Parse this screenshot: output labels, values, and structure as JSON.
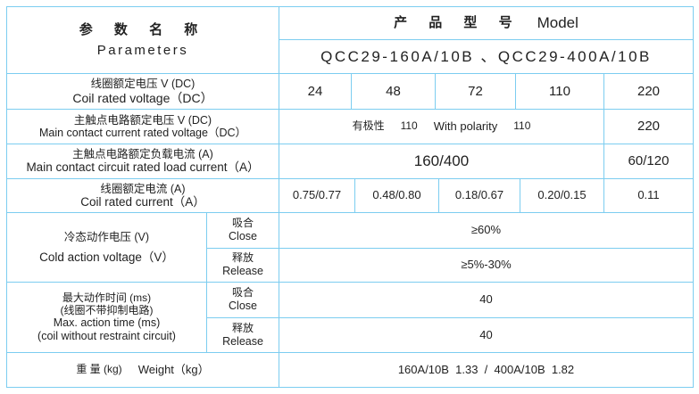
{
  "header": {
    "param_cn": "参 数 名 称",
    "param_en": "Parameters",
    "model_cn": "产 品 型 号",
    "model_en": "Model",
    "model_names": "QCC29-160A/10B 、QCC29-400A/10B"
  },
  "rows": {
    "coil_voltage": {
      "cn": "线圈额定电压 V (DC)",
      "en": "Coil rated voltage（DC）",
      "values": [
        "24",
        "48",
        "72",
        "110",
        "220"
      ]
    },
    "main_voltage": {
      "cn": "主触点电路额定电压 V (DC)",
      "en": "Main contact current rated voltage（DC）",
      "polarity_cn": "有极性",
      "polarity_cn_value": "110",
      "polarity_en": "With polarity",
      "polarity_en_value": "110",
      "value_220": "220"
    },
    "main_current": {
      "cn": "主触点电路额定负载电流 (A)",
      "en": "Main contact circuit rated load current（A）",
      "value_main": "160/400",
      "value_220": "60/120"
    },
    "coil_current": {
      "cn": "线圈额定电流 (A)",
      "en": "Coil rated current（A）",
      "values": [
        "0.75/0.77",
        "0.48/0.80",
        "0.18/0.67",
        "0.20/0.15",
        "0.11"
      ]
    },
    "cold_voltage": {
      "cn": "冷态动作电压 (V)",
      "en": "Cold action voltage（V）",
      "close_cn": "吸合",
      "close_en": "Close",
      "release_cn": "释放",
      "release_en": "Release",
      "close_value": "≥60%",
      "release_value": "≥5%-30%"
    },
    "action_time": {
      "cn": "最大动作时间 (ms)",
      "cn2": "(线圈不带抑制电路)",
      "en": "Max. action time (ms)",
      "en2": "(coil without restraint circuit)",
      "close_cn": "吸合",
      "close_en": "Close",
      "release_cn": "释放",
      "release_en": "Release",
      "close_value": "40",
      "release_value": "40"
    },
    "weight": {
      "cn": "重 量 (kg)",
      "en": "Weight（kg）",
      "value": "160A/10B  1.33  /  400A/10B  1.82"
    }
  },
  "colors": {
    "border": "#7ccdf0"
  }
}
